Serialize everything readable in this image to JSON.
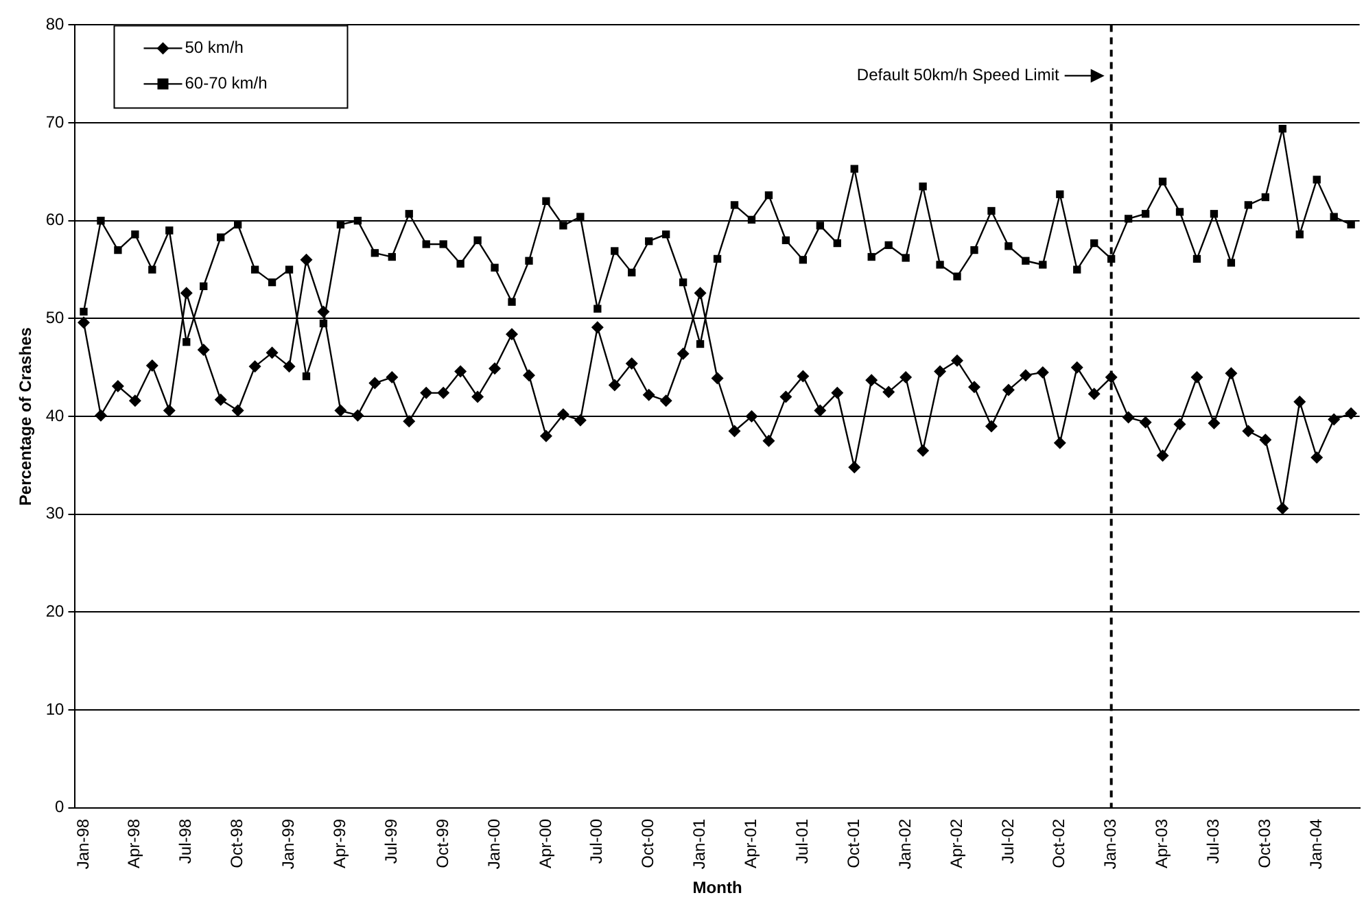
{
  "chart_data": {
    "type": "line",
    "xlabel": "Month",
    "ylabel": "Percentage of Crashes",
    "categories": [
      "Jan-98",
      null,
      null,
      "Apr-98",
      null,
      null,
      "Jul-98",
      null,
      null,
      "Oct-98",
      null,
      null,
      "Jan-99",
      null,
      null,
      "Apr-99",
      null,
      null,
      "Jul-99",
      null,
      null,
      "Oct-99",
      null,
      null,
      "Jan-00",
      null,
      null,
      "Apr-00",
      null,
      null,
      "Jul-00",
      null,
      null,
      "Oct-00",
      null,
      null,
      "Jan-01",
      null,
      null,
      "Apr-01",
      null,
      null,
      "Jul-01",
      null,
      null,
      "Oct-01",
      null,
      null,
      "Jan-02",
      null,
      null,
      "Apr-02",
      null,
      null,
      "Jul-02",
      null,
      null,
      "Oct-02",
      null,
      null,
      "Jan-03",
      null,
      null,
      "Apr-03",
      null,
      null,
      "Jul-03",
      null,
      null,
      "Oct-03",
      null,
      null,
      "Jan-04",
      null,
      null
    ],
    "series": [
      {
        "name": "50 km/h",
        "color": "#000000",
        "marker": "diamond",
        "values": [
          49.6,
          40.1,
          43.1,
          41.6,
          45.2,
          40.6,
          52.6,
          46.8,
          41.7,
          40.6,
          45.1,
          46.5,
          45.1,
          56,
          50.7,
          40.6,
          40.1,
          43.4,
          44,
          39.5,
          42.4,
          42.4,
          44.6,
          42,
          44.9,
          48.4,
          44.2,
          38,
          40.2,
          39.6,
          49.1,
          43.2,
          45.4,
          42.2,
          41.6,
          46.4,
          52.6,
          43.9,
          38.5,
          40,
          37.5,
          42,
          44.1,
          40.6,
          42.4,
          34.8,
          43.7,
          42.5,
          44,
          36.5,
          44.6,
          45.7,
          43,
          39,
          42.7,
          44.2,
          44.5,
          37.3,
          45,
          42.3,
          44,
          39.9,
          39.4,
          36,
          39.2,
          44,
          39.3,
          44.4,
          38.5,
          37.6,
          30.6,
          41.5,
          35.8,
          39.7,
          40.3
        ]
      },
      {
        "name": "60-70 km/h",
        "color": "#000000",
        "marker": "square",
        "values": [
          50.7,
          60,
          57,
          58.6,
          55,
          59,
          47.6,
          53.3,
          58.3,
          59.6,
          55,
          53.7,
          55,
          44.1,
          49.5,
          59.6,
          60,
          56.7,
          56.3,
          60.7,
          57.6,
          57.6,
          55.6,
          58,
          55.2,
          51.7,
          55.9,
          62,
          59.5,
          60.4,
          51,
          56.9,
          54.7,
          57.9,
          58.6,
          53.7,
          47.4,
          56.1,
          61.6,
          60.1,
          62.6,
          58,
          56,
          59.5,
          57.7,
          65.3,
          56.3,
          57.5,
          56.2,
          63.5,
          55.5,
          54.3,
          57,
          61,
          57.4,
          55.9,
          55.5,
          62.7,
          55,
          57.7,
          56.1,
          60.2,
          60.7,
          64,
          60.9,
          56.1,
          60.7,
          55.7,
          61.6,
          62.4,
          69.4,
          58.6,
          64.2,
          60.4,
          59.6
        ]
      }
    ],
    "ylim": [
      0,
      80
    ],
    "yticks": [
      0,
      10,
      20,
      30,
      40,
      50,
      60,
      70,
      80
    ],
    "grid": "y",
    "legend": "top left",
    "line_style": "solid",
    "ref_lines": [
      {
        "axis": "x",
        "value": "Jan-03",
        "label": "Default 50km/h Speed Limit",
        "line_style": "dashed",
        "color": "#000000"
      }
    ]
  }
}
